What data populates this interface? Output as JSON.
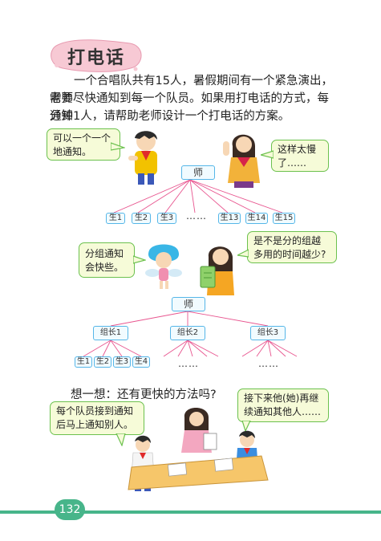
{
  "lesson_title": "打电话",
  "intro": {
    "line1": "一个合唱队共有15人，暑假期间有一个紧急演出，老师",
    "line2": "需要尽快通知到每一个队员。如果用打电话的方式，每分钟",
    "line3": "通知1人，请帮助老师设计一个打电话的方案。"
  },
  "scene1": {
    "bubble_left": {
      "line1": "可以一个一个",
      "line2": "地通知。"
    },
    "bubble_right": {
      "line1": "这样太慢",
      "line2": "了……"
    },
    "root": "师",
    "leaves": [
      "生1",
      "生2",
      "生3",
      "……",
      "生13",
      "生14",
      "生15"
    ]
  },
  "scene2": {
    "bubble_left": {
      "line1": "分组通知",
      "line2": "会快些。"
    },
    "bubble_right": {
      "line1": "是不是分的组越",
      "line2": "多用的时间越少?"
    },
    "root": "师",
    "groups": [
      "组长1",
      "组长2",
      "组长3"
    ],
    "leaves": [
      "生1",
      "生2",
      "生3",
      "生4"
    ],
    "dots": [
      "……",
      "……"
    ]
  },
  "think": "想一想：还有更快的方法吗?",
  "scene3": {
    "bubble_left": {
      "line1": "每个队员接到通知",
      "line2": "后马上通知别人。"
    },
    "bubble_right": {
      "line1": "接下来他(她)再继",
      "line2": "续通知其他人……"
    }
  },
  "page_number": "132",
  "colors": {
    "green": "#47b58a",
    "bubble_border": "#6cc14e",
    "tree_line": "#e8558f",
    "node_border": "#55b6e8"
  }
}
